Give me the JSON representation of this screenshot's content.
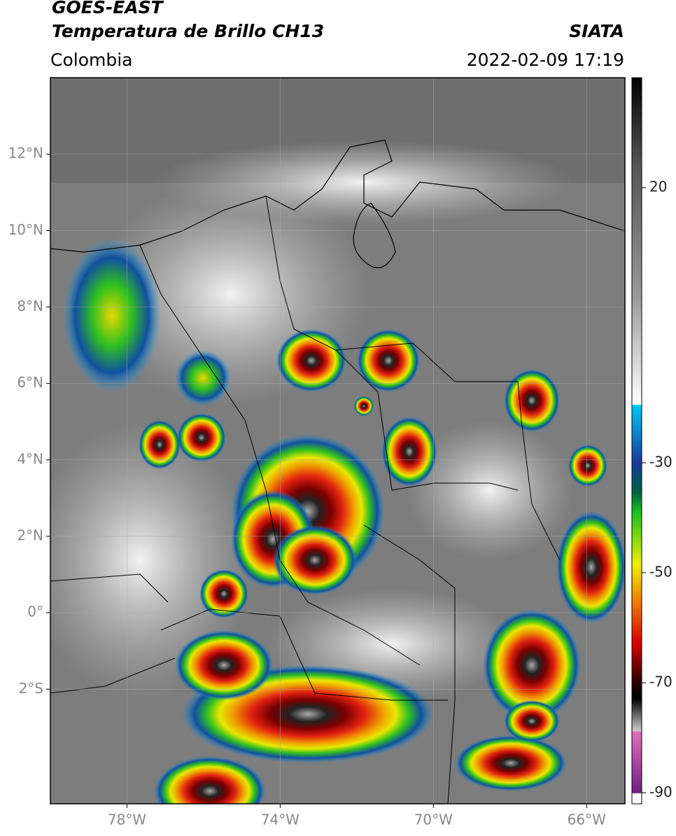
{
  "header": {
    "title": "GOES-EAST",
    "subtitle": "Temperatura de Brillo CH13",
    "source": "SIATA",
    "region": "Colombia",
    "timestamp": "2022-02-09 17:19"
  },
  "map": {
    "xlim": [
      -80,
      -65
    ],
    "ylim": [
      -5,
      14
    ],
    "xticks": [
      {
        "value": -78,
        "label": "78°W"
      },
      {
        "value": -74,
        "label": "74°W"
      },
      {
        "value": -70,
        "label": "70°W"
      },
      {
        "value": -66,
        "label": "66°W"
      }
    ],
    "yticks": [
      {
        "value": 12,
        "label": "12°N"
      },
      {
        "value": 10,
        "label": "10°N"
      },
      {
        "value": 8,
        "label": "8°N"
      },
      {
        "value": 6,
        "label": "6°N"
      },
      {
        "value": 4,
        "label": "4°N"
      },
      {
        "value": 2,
        "label": "2°N"
      },
      {
        "value": 0,
        "label": "0°"
      },
      {
        "value": -2,
        "label": "2°S"
      }
    ],
    "grid": true
  },
  "colorbar": {
    "lim": [
      -92,
      40
    ],
    "ticks": [
      20,
      -30,
      -50,
      -70,
      -90
    ]
  }
}
